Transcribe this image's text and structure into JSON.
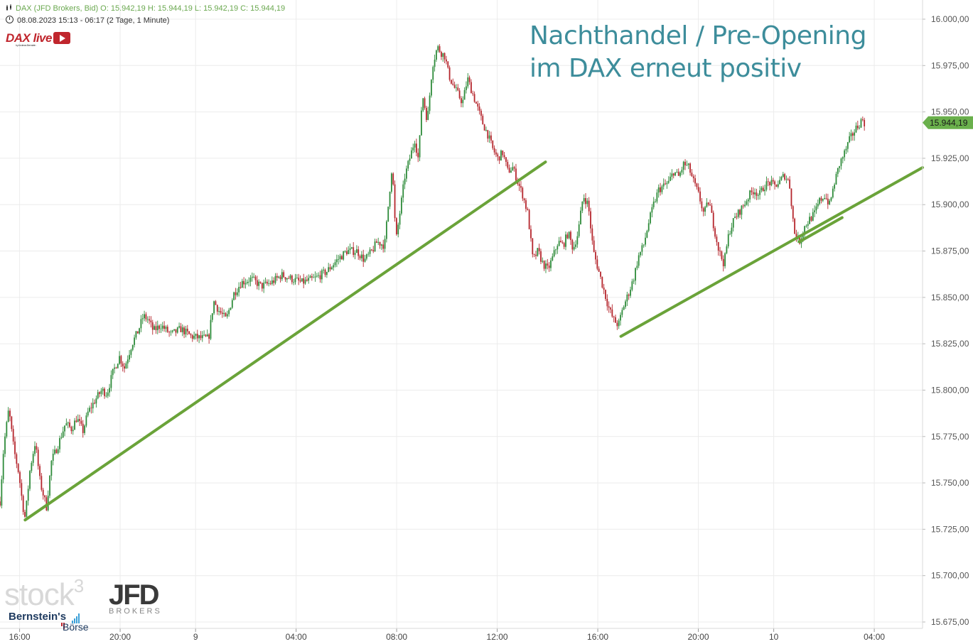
{
  "header": {
    "line1": "DAX (JFD Brokers, Bid)  O: 15.942,19  H: 15.944,19  L: 15.942,19  C: 15.944,19",
    "line2": "08.08.2023 15:13 - 06:17   (2 Tage, 1 Minute)"
  },
  "brand": {
    "daxlive": "DAX live",
    "daxlive_by": "by Andreas Bernstein",
    "stock3": "stock",
    "stock3_sup": "3",
    "jfd": "JFD",
    "brokers": "BROKERS",
    "bernstein": "Bernstein's",
    "boerse": "Börse"
  },
  "headline": {
    "line1": "Nachthandel / Pre-Opening",
    "line2": "im DAX erneut positiv"
  },
  "colors": {
    "trendline": "#6aa339",
    "up": "#2e8b3a",
    "down": "#b5262d",
    "grid": "#ececec",
    "price_tag": "#6ab04c",
    "headline": "#3d8d9b"
  },
  "chart_data": {
    "type": "candlestick",
    "symbol": "DAX (JFD Brokers, Bid)",
    "interval": "1 Minute",
    "ylim": [
      15665,
      16005
    ],
    "y_ticks": [
      "16.000,00",
      "15.975,00",
      "15.950,00",
      "15.925,00",
      "15.900,00",
      "15.875,00",
      "15.850,00",
      "15.825,00",
      "15.800,00",
      "15.775,00",
      "15.750,00",
      "15.725,00",
      "15.700,00",
      "15.675,00"
    ],
    "y_tick_values": [
      16000,
      15975,
      15950,
      15925,
      15900,
      15875,
      15850,
      15825,
      15800,
      15775,
      15750,
      15725,
      15700,
      15675
    ],
    "x_ticks": [
      "16:00",
      "20:00",
      "9",
      "04:00",
      "08:00",
      "12:00",
      "16:00",
      "20:00",
      "10",
      "04:00"
    ],
    "x_tick_hours": [
      0.78,
      4.78,
      7.78,
      11.78,
      15.78,
      19.78,
      23.78,
      27.78,
      30.78,
      34.78
    ],
    "x_range_hours": [
      0,
      36.7
    ],
    "last_price": 15944.19,
    "last_price_label": "15.944,19",
    "path_points": [
      [
        0.0,
        15740
      ],
      [
        0.15,
        15770
      ],
      [
        0.35,
        15790
      ],
      [
        0.55,
        15768
      ],
      [
        0.75,
        15755
      ],
      [
        0.9,
        15738
      ],
      [
        1.0,
        15731
      ],
      [
        1.2,
        15758
      ],
      [
        1.4,
        15772
      ],
      [
        1.6,
        15750
      ],
      [
        1.85,
        15737
      ],
      [
        2.05,
        15762
      ],
      [
        2.3,
        15770
      ],
      [
        2.6,
        15782
      ],
      [
        2.85,
        15779
      ],
      [
        3.05,
        15785
      ],
      [
        3.3,
        15778
      ],
      [
        3.5,
        15788
      ],
      [
        3.8,
        15795
      ],
      [
        4.05,
        15800
      ],
      [
        4.25,
        15798
      ],
      [
        4.5,
        15810
      ],
      [
        4.75,
        15818
      ],
      [
        4.95,
        15812
      ],
      [
        5.25,
        15825
      ],
      [
        5.5,
        15832
      ],
      [
        5.7,
        15840
      ],
      [
        5.9,
        15838
      ],
      [
        6.1,
        15832
      ],
      [
        6.4,
        15835
      ],
      [
        6.8,
        15830
      ],
      [
        7.2,
        15833
      ],
      [
        7.6,
        15829
      ],
      [
        8.0,
        15828
      ],
      [
        8.3,
        15828
      ],
      [
        8.5,
        15848
      ],
      [
        8.7,
        15843
      ],
      [
        9.0,
        15838
      ],
      [
        9.3,
        15852
      ],
      [
        9.6,
        15858
      ],
      [
        10.0,
        15860
      ],
      [
        10.4,
        15856
      ],
      [
        10.8,
        15858
      ],
      [
        11.2,
        15862
      ],
      [
        11.6,
        15860
      ],
      [
        12.0,
        15858
      ],
      [
        12.5,
        15860
      ],
      [
        13.0,
        15864
      ],
      [
        13.4,
        15870
      ],
      [
        13.8,
        15875
      ],
      [
        14.2,
        15875
      ],
      [
        14.5,
        15870
      ],
      [
        14.8,
        15875
      ],
      [
        15.0,
        15880
      ],
      [
        15.3,
        15878
      ],
      [
        15.6,
        15922
      ],
      [
        15.75,
        15880
      ],
      [
        15.9,
        15895
      ],
      [
        16.1,
        15915
      ],
      [
        16.3,
        15925
      ],
      [
        16.5,
        15935
      ],
      [
        16.65,
        15924
      ],
      [
        16.8,
        15960
      ],
      [
        17.0,
        15945
      ],
      [
        17.2,
        15975
      ],
      [
        17.4,
        15985
      ],
      [
        17.55,
        15982
      ],
      [
        17.7,
        15980
      ],
      [
        17.85,
        15970
      ],
      [
        18.0,
        15965
      ],
      [
        18.2,
        15960
      ],
      [
        18.4,
        15955
      ],
      [
        18.6,
        15968
      ],
      [
        18.8,
        15960
      ],
      [
        19.0,
        15952
      ],
      [
        19.2,
        15944
      ],
      [
        19.4,
        15938
      ],
      [
        19.6,
        15930
      ],
      [
        19.8,
        15925
      ],
      [
        20.0,
        15928
      ],
      [
        20.2,
        15918
      ],
      [
        20.4,
        15920
      ],
      [
        20.6,
        15912
      ],
      [
        20.8,
        15905
      ],
      [
        21.0,
        15895
      ],
      [
        21.2,
        15870
      ],
      [
        21.4,
        15875
      ],
      [
        21.6,
        15868
      ],
      [
        21.8,
        15865
      ],
      [
        22.0,
        15872
      ],
      [
        22.2,
        15880
      ],
      [
        22.4,
        15878
      ],
      [
        22.6,
        15885
      ],
      [
        22.8,
        15876
      ],
      [
        23.0,
        15885
      ],
      [
        23.2,
        15905
      ],
      [
        23.4,
        15900
      ],
      [
        23.6,
        15875
      ],
      [
        23.8,
        15865
      ],
      [
        24.0,
        15855
      ],
      [
        24.2,
        15845
      ],
      [
        24.4,
        15838
      ],
      [
        24.6,
        15835
      ],
      [
        24.8,
        15845
      ],
      [
        25.0,
        15852
      ],
      [
        25.2,
        15860
      ],
      [
        25.4,
        15872
      ],
      [
        25.6,
        15878
      ],
      [
        25.8,
        15890
      ],
      [
        26.0,
        15900
      ],
      [
        26.2,
        15908
      ],
      [
        26.4,
        15910
      ],
      [
        26.6,
        15912
      ],
      [
        26.8,
        15918
      ],
      [
        27.0,
        15915
      ],
      [
        27.2,
        15922
      ],
      [
        27.4,
        15920
      ],
      [
        27.6,
        15912
      ],
      [
        27.8,
        15905
      ],
      [
        28.0,
        15895
      ],
      [
        28.2,
        15902
      ],
      [
        28.4,
        15888
      ],
      [
        28.6,
        15875
      ],
      [
        28.8,
        15868
      ],
      [
        29.0,
        15885
      ],
      [
        29.2,
        15892
      ],
      [
        29.4,
        15896
      ],
      [
        29.6,
        15900
      ],
      [
        29.8,
        15905
      ],
      [
        30.0,
        15908
      ],
      [
        30.2,
        15905
      ],
      [
        30.4,
        15910
      ],
      [
        30.6,
        15912
      ],
      [
        30.8,
        15910
      ],
      [
        31.0,
        15912
      ],
      [
        31.2,
        15916
      ],
      [
        31.4,
        15912
      ],
      [
        31.6,
        15885
      ],
      [
        31.8,
        15880
      ],
      [
        32.0,
        15888
      ],
      [
        32.2,
        15892
      ],
      [
        32.4,
        15895
      ],
      [
        32.6,
        15902
      ],
      [
        32.8,
        15905
      ],
      [
        33.0,
        15900
      ],
      [
        33.2,
        15912
      ],
      [
        33.4,
        15922
      ],
      [
        33.6,
        15928
      ],
      [
        33.8,
        15935
      ],
      [
        34.0,
        15940
      ],
      [
        34.2,
        15944
      ],
      [
        34.3,
        15946
      ],
      [
        34.4,
        15944
      ]
    ],
    "trendlines": [
      {
        "x": [
          1.0,
          21.7
        ],
        "y": [
          15730,
          15923
        ]
      },
      {
        "x": [
          24.7,
          36.7
        ],
        "y": [
          15829,
          15920
        ]
      },
      {
        "x": [
          31.8,
          33.5
        ],
        "y": [
          15880,
          15893
        ]
      }
    ]
  }
}
